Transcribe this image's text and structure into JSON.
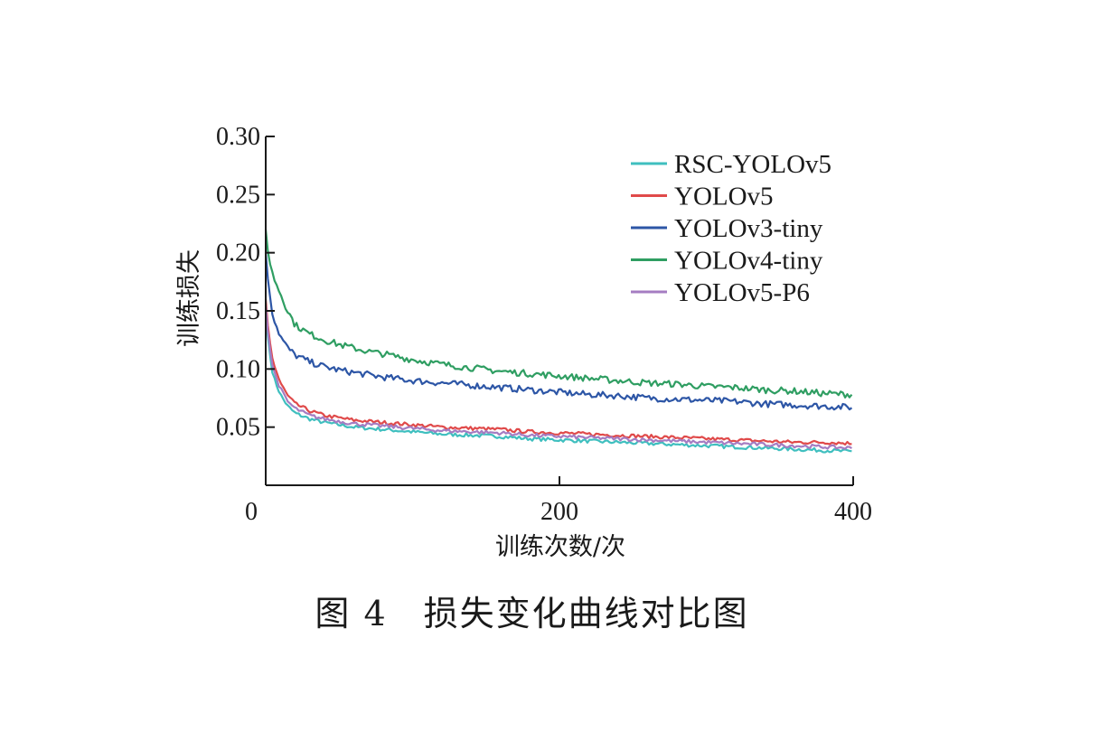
{
  "figure": {
    "caption": "图 4　损失变化曲线对比图"
  },
  "chart_data": {
    "type": "line",
    "xlabel": "训练次数/次",
    "ylabel": "训练损失",
    "xlim": [
      0,
      400
    ],
    "ylim": [
      0,
      0.3
    ],
    "xticks": [
      0,
      200,
      400
    ],
    "xtick_labels": [
      "0",
      "200",
      "400"
    ],
    "yticks": [
      0.05,
      0.1,
      0.15,
      0.2,
      0.25,
      0.3
    ],
    "ytick_labels": [
      "0.05",
      "0.10",
      "0.15",
      "0.20",
      "0.25",
      "0.30"
    ],
    "grid": false,
    "legend": "top-right",
    "x": [
      0,
      2,
      5,
      10,
      15,
      20,
      30,
      40,
      50,
      60,
      70,
      80,
      100,
      120,
      140,
      160,
      180,
      200,
      220,
      240,
      260,
      280,
      300,
      320,
      340,
      360,
      380,
      400
    ],
    "series": [
      {
        "name": "RSC-YOLOv5",
        "color": "#3fbfbf",
        "values": [
          0.15,
          0.12,
          0.094,
          0.078,
          0.068,
          0.062,
          0.057,
          0.054,
          0.052,
          0.05,
          0.049,
          0.048,
          0.046,
          0.044,
          0.043,
          0.042,
          0.04,
          0.039,
          0.038,
          0.037,
          0.036,
          0.035,
          0.034,
          0.033,
          0.032,
          0.031,
          0.03,
          0.029
        ]
      },
      {
        "name": "YOLOv5",
        "color": "#e04a4a",
        "values": [
          0.16,
          0.13,
          0.106,
          0.088,
          0.077,
          0.07,
          0.064,
          0.06,
          0.058,
          0.056,
          0.055,
          0.054,
          0.052,
          0.05,
          0.049,
          0.048,
          0.046,
          0.045,
          0.044,
          0.043,
          0.042,
          0.041,
          0.04,
          0.039,
          0.038,
          0.037,
          0.037,
          0.036
        ]
      },
      {
        "name": "YOLOv3-tiny",
        "color": "#2d56a6",
        "values": [
          0.2,
          0.17,
          0.145,
          0.128,
          0.118,
          0.112,
          0.106,
          0.102,
          0.099,
          0.097,
          0.095,
          0.093,
          0.09,
          0.088,
          0.086,
          0.084,
          0.082,
          0.08,
          0.078,
          0.077,
          0.075,
          0.074,
          0.073,
          0.072,
          0.07,
          0.069,
          0.068,
          0.067
        ]
      },
      {
        "name": "YOLOv4-tiny",
        "color": "#2f9e62",
        "values": [
          0.22,
          0.195,
          0.18,
          0.165,
          0.15,
          0.138,
          0.13,
          0.125,
          0.121,
          0.118,
          0.115,
          0.113,
          0.108,
          0.104,
          0.101,
          0.098,
          0.096,
          0.094,
          0.092,
          0.09,
          0.088,
          0.087,
          0.085,
          0.084,
          0.082,
          0.081,
          0.079,
          0.078
        ]
      },
      {
        "name": "YOLOv5-P6",
        "color": "#a57cc2",
        "values": [
          0.155,
          0.125,
          0.1,
          0.083,
          0.072,
          0.066,
          0.06,
          0.057,
          0.055,
          0.053,
          0.052,
          0.051,
          0.049,
          0.047,
          0.046,
          0.045,
          0.043,
          0.042,
          0.041,
          0.04,
          0.039,
          0.038,
          0.037,
          0.036,
          0.035,
          0.034,
          0.033,
          0.032
        ]
      }
    ]
  }
}
